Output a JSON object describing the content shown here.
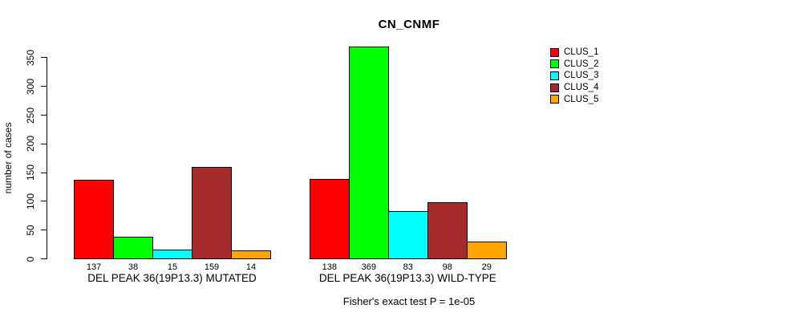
{
  "title": "CN_CNMF",
  "chart_data": {
    "type": "bar",
    "title": "CN_CNMF",
    "ylabel": "number of cases",
    "xlabel": "",
    "ylim": [
      0,
      350
    ],
    "yticks": [
      0,
      50,
      100,
      150,
      200,
      250,
      300,
      350
    ],
    "grid": false,
    "legend_position": "right-outside",
    "categories": [
      "DEL PEAK 36(19P13.3) MUTATED",
      "DEL PEAK 36(19P13.3) WILD-TYPE"
    ],
    "series": [
      {
        "name": "CLUS_1",
        "color": "#FF0000",
        "values": [
          137,
          138
        ]
      },
      {
        "name": "CLUS_2",
        "color": "#00FF00",
        "values": [
          38,
          369
        ]
      },
      {
        "name": "CLUS_3",
        "color": "#00FFFF",
        "values": [
          15,
          83
        ]
      },
      {
        "name": "CLUS_4",
        "color": "#A52A2A",
        "values": [
          159,
          98
        ]
      },
      {
        "name": "CLUS_5",
        "color": "#FFA500",
        "values": [
          14,
          29
        ]
      }
    ],
    "bar_value_labels_shown": true,
    "footnote": "Fisher's exact test P = 1e-05"
  }
}
